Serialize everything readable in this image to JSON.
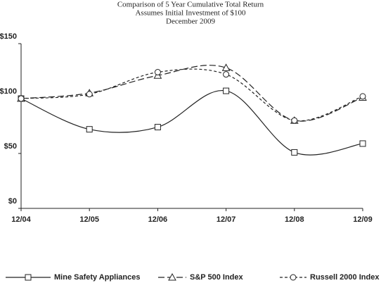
{
  "chart_data": {
    "type": "line",
    "title": "Comparison of 5 Year Cumulative Total Return",
    "subtitle": "Assumes Initial Investment of $100",
    "date_line": "December 2009",
    "categories": [
      "12/04",
      "12/05",
      "12/06",
      "12/07",
      "12/08",
      "12/09"
    ],
    "series": [
      {
        "name": "Mine Safety Appliances",
        "color": "#222222",
        "marker": "square",
        "dash": "solid",
        "values": [
          100,
          72,
          74,
          107,
          51,
          59
        ]
      },
      {
        "name": "S&P 500 Index",
        "color": "#222222",
        "marker": "triangle",
        "dash": "long",
        "values": [
          100,
          105,
          121,
          128,
          80,
          101
        ]
      },
      {
        "name": "Russell 2000 Index",
        "color": "#222222",
        "marker": "circle",
        "dash": "short",
        "values": [
          100,
          104,
          124,
          122,
          80,
          102
        ]
      }
    ],
    "ylim": [
      0,
      150
    ],
    "yticks": [
      {
        "value": 0,
        "label": "$0"
      },
      {
        "value": 50,
        "label": "$50"
      },
      {
        "value": 100,
        "label": "$100"
      },
      {
        "value": 150,
        "label": "$150"
      }
    ],
    "grid": false,
    "legend": "bottom"
  }
}
